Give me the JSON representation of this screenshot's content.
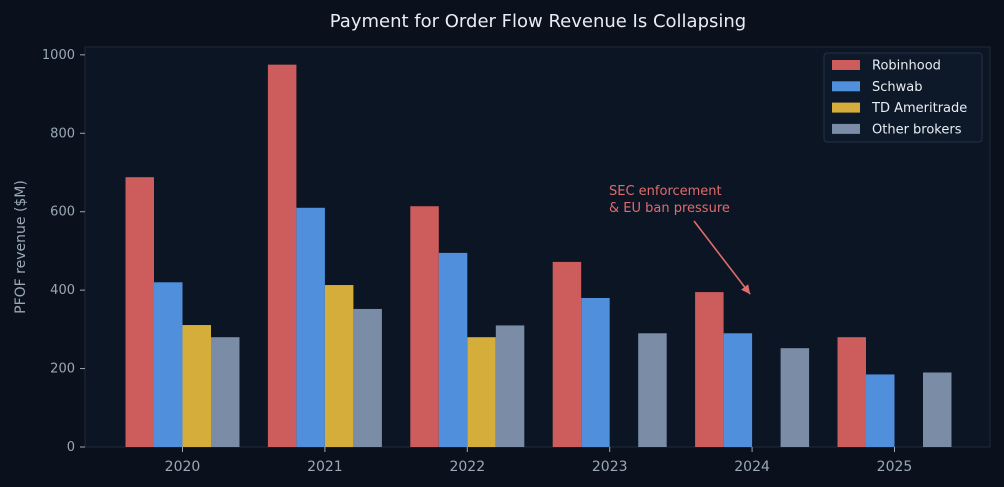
{
  "chart_data": {
    "type": "bar",
    "title": "Payment for Order Flow Revenue Is Collapsing",
    "xlabel": "",
    "ylabel": "PFOF revenue ($M)",
    "ylim": [
      0,
      1020
    ],
    "yticks": [
      0,
      200,
      400,
      600,
      800,
      1000
    ],
    "categories": [
      "2020",
      "2021",
      "2022",
      "2023",
      "2024",
      "2025"
    ],
    "series": [
      {
        "name": "Robinhood",
        "color": "#cd5c5c",
        "values": [
          688,
          975,
          614,
          472,
          395,
          280
        ]
      },
      {
        "name": "Schwab",
        "color": "#4f8fdc",
        "values": [
          420,
          610,
          495,
          380,
          290,
          185
        ]
      },
      {
        "name": "TD Ameritrade",
        "color": "#d4ad3b",
        "values": [
          311,
          413,
          280,
          null,
          null,
          null
        ]
      },
      {
        "name": "Other brokers",
        "color": "#7a8ca6",
        "values": [
          280,
          352,
          310,
          290,
          252,
          190
        ]
      }
    ],
    "legend_position": "top-right",
    "grid": false,
    "annotation": {
      "lines": [
        "SEC enforcement",
        "& EU ban pressure"
      ],
      "target_category": "2024",
      "target_value": 400,
      "color": "#e06c6c"
    }
  }
}
